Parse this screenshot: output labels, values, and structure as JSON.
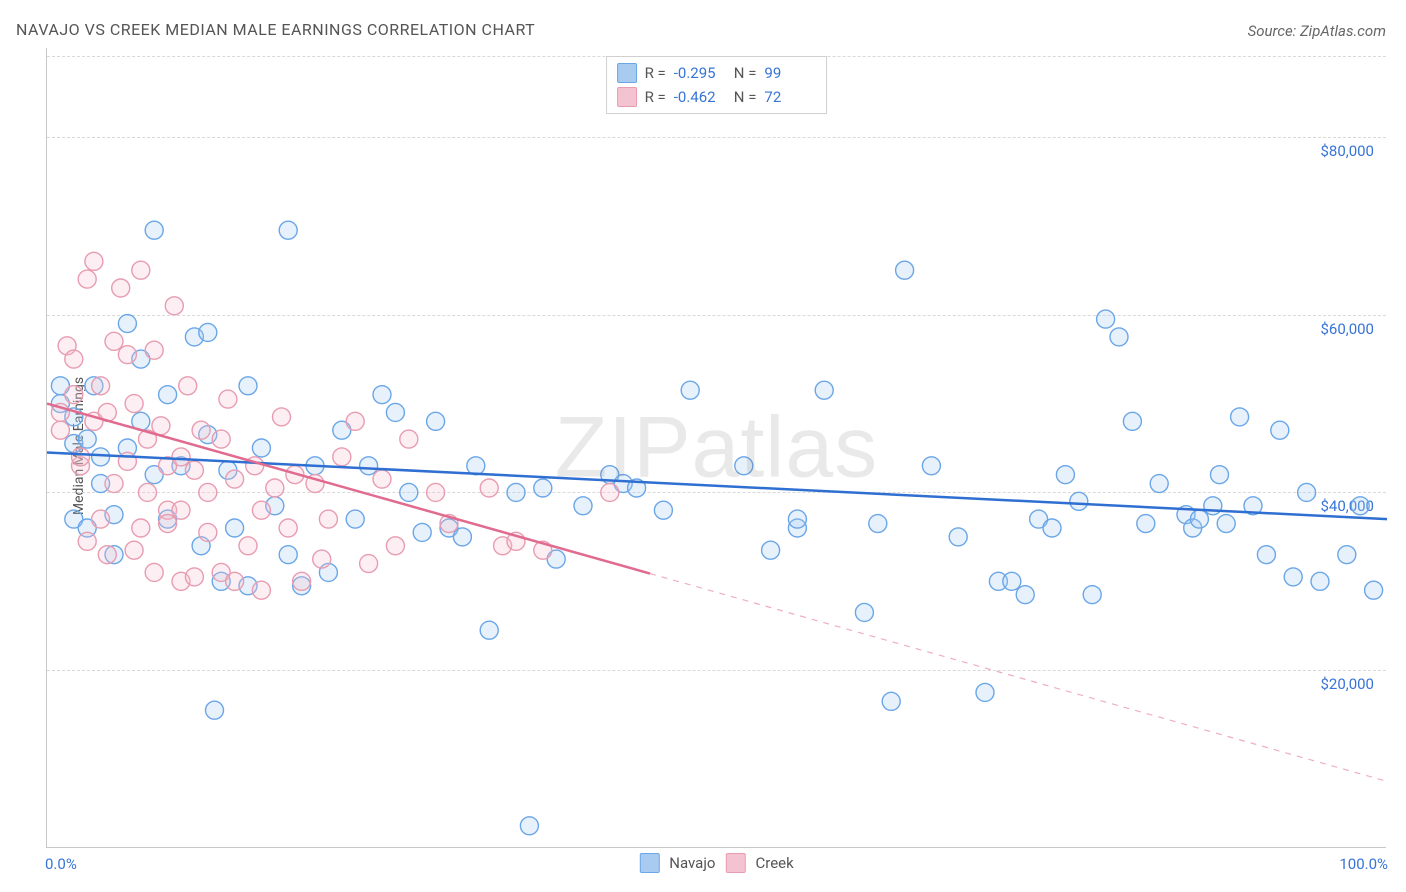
{
  "title": "NAVAJO VS CREEK MEDIAN MALE EARNINGS CORRELATION CHART",
  "source_label": "Source: ZipAtlas.com",
  "watermark": "ZIPatlas",
  "ylabel": "Median Male Earnings",
  "chart": {
    "type": "scatter",
    "background_color": "#ffffff",
    "grid_color": "#d9d9d9",
    "axis_color": "#c9c9c9",
    "tick_text_color": "#3874d6",
    "title_color": "#555555",
    "title_fontsize": 16,
    "tick_fontsize": 15,
    "xlim": [
      0,
      100
    ],
    "ylim": [
      0,
      90000
    ],
    "xtick_labels": {
      "0": "0.0%",
      "100": "100.0%"
    },
    "ytick_values": [
      20000,
      40000,
      60000,
      80000
    ],
    "ytick_labels": [
      "$20,000",
      "$40,000",
      "$60,000",
      "$80,000"
    ],
    "point_radius": 9,
    "point_fill_opacity": 0.28,
    "point_stroke_width": 1.4,
    "line_width": 2.5,
    "series": [
      {
        "name": "Navajo",
        "color_stroke": "#6aa6e8",
        "color_fill": "#a8cbef",
        "line_color": "#2f6fd1",
        "r": -0.295,
        "n": 99,
        "regression": {
          "y_at_x0": 44500,
          "y_at_x100": 37000,
          "solid_to_x": 100
        },
        "points": [
          [
            1,
            50000
          ],
          [
            1,
            52000
          ],
          [
            2,
            48500
          ],
          [
            2,
            45500
          ],
          [
            2,
            37000
          ],
          [
            3,
            36000
          ],
          [
            3,
            46000
          ],
          [
            3.5,
            52000
          ],
          [
            4,
            41000
          ],
          [
            4,
            44000
          ],
          [
            5,
            37500
          ],
          [
            5,
            33000
          ],
          [
            6,
            59000
          ],
          [
            6,
            45000
          ],
          [
            7,
            48000
          ],
          [
            7,
            55000
          ],
          [
            8,
            69500
          ],
          [
            8,
            42000
          ],
          [
            9,
            51000
          ],
          [
            9,
            37000
          ],
          [
            10,
            43000
          ],
          [
            11,
            57500
          ],
          [
            11.5,
            34000
          ],
          [
            12,
            46500
          ],
          [
            12,
            58000
          ],
          [
            12.5,
            15500
          ],
          [
            13,
            30000
          ],
          [
            13.5,
            42500
          ],
          [
            14,
            36000
          ],
          [
            15,
            52000
          ],
          [
            15,
            29500
          ],
          [
            16,
            45000
          ],
          [
            17,
            38500
          ],
          [
            18,
            69500
          ],
          [
            18,
            33000
          ],
          [
            19,
            29500
          ],
          [
            20,
            43000
          ],
          [
            21,
            31000
          ],
          [
            22,
            47000
          ],
          [
            23,
            37000
          ],
          [
            24,
            43000
          ],
          [
            25,
            51000
          ],
          [
            26,
            49000
          ],
          [
            27,
            40000
          ],
          [
            28,
            35500
          ],
          [
            29,
            48000
          ],
          [
            30,
            36000
          ],
          [
            31,
            35000
          ],
          [
            32,
            43000
          ],
          [
            33,
            24500
          ],
          [
            35,
            40000
          ],
          [
            36,
            2500
          ],
          [
            37,
            40500
          ],
          [
            38,
            32500
          ],
          [
            40,
            38500
          ],
          [
            42,
            42000
          ],
          [
            43,
            41000
          ],
          [
            44,
            40500
          ],
          [
            46,
            38000
          ],
          [
            48,
            51500
          ],
          [
            52,
            43000
          ],
          [
            54,
            33500
          ],
          [
            56,
            36000
          ],
          [
            56,
            37000
          ],
          [
            58,
            51500
          ],
          [
            61,
            26500
          ],
          [
            62,
            36500
          ],
          [
            63,
            16500
          ],
          [
            64,
            65000
          ],
          [
            66,
            43000
          ],
          [
            68,
            35000
          ],
          [
            70,
            17500
          ],
          [
            71,
            30000
          ],
          [
            72,
            30000
          ],
          [
            73,
            28500
          ],
          [
            74,
            37000
          ],
          [
            75,
            36000
          ],
          [
            76,
            42000
          ],
          [
            77,
            39000
          ],
          [
            78,
            28500
          ],
          [
            79,
            59500
          ],
          [
            80,
            57500
          ],
          [
            81,
            48000
          ],
          [
            82,
            36500
          ],
          [
            83,
            41000
          ],
          [
            85,
            37500
          ],
          [
            85.5,
            36000
          ],
          [
            86,
            37000
          ],
          [
            87,
            38500
          ],
          [
            87.5,
            42000
          ],
          [
            88,
            36500
          ],
          [
            89,
            48500
          ],
          [
            90,
            38500
          ],
          [
            91,
            33000
          ],
          [
            92,
            47000
          ],
          [
            93,
            30500
          ],
          [
            94,
            40000
          ],
          [
            95,
            30000
          ],
          [
            97,
            33000
          ],
          [
            98,
            38500
          ],
          [
            99,
            29000
          ]
        ]
      },
      {
        "name": "Creek",
        "color_stroke": "#e89cb0",
        "color_fill": "#f4c3d1",
        "line_color": "#e16b8f",
        "r": -0.462,
        "n": 72,
        "regression": {
          "y_at_x0": 50000,
          "y_at_x100": 7500,
          "solid_to_x": 45
        },
        "points": [
          [
            1,
            49000
          ],
          [
            1,
            47000
          ],
          [
            1.5,
            56500
          ],
          [
            2,
            51000
          ],
          [
            2,
            55000
          ],
          [
            2.5,
            43000
          ],
          [
            2.5,
            44000
          ],
          [
            3,
            34500
          ],
          [
            3,
            64000
          ],
          [
            3.5,
            48000
          ],
          [
            3.5,
            66000
          ],
          [
            4,
            37000
          ],
          [
            4,
            52000
          ],
          [
            4.5,
            33000
          ],
          [
            4.5,
            49000
          ],
          [
            5,
            57000
          ],
          [
            5,
            41000
          ],
          [
            5.5,
            63000
          ],
          [
            6,
            55500
          ],
          [
            6,
            43500
          ],
          [
            6.5,
            33500
          ],
          [
            6.5,
            50000
          ],
          [
            7,
            65000
          ],
          [
            7,
            36000
          ],
          [
            7.5,
            46000
          ],
          [
            7.5,
            40000
          ],
          [
            8,
            31000
          ],
          [
            8,
            56000
          ],
          [
            8.5,
            47500
          ],
          [
            9,
            38000
          ],
          [
            9,
            36500
          ],
          [
            9,
            43000
          ],
          [
            9.5,
            61000
          ],
          [
            10,
            44000
          ],
          [
            10,
            30000
          ],
          [
            10,
            38000
          ],
          [
            10.5,
            52000
          ],
          [
            11,
            42500
          ],
          [
            11,
            30500
          ],
          [
            11.5,
            47000
          ],
          [
            12,
            40000
          ],
          [
            12,
            35500
          ],
          [
            13,
            31000
          ],
          [
            13,
            46000
          ],
          [
            13.5,
            50500
          ],
          [
            14,
            30000
          ],
          [
            14,
            41500
          ],
          [
            15,
            34000
          ],
          [
            15.5,
            43000
          ],
          [
            16,
            38000
          ],
          [
            16,
            29000
          ],
          [
            17,
            40500
          ],
          [
            17.5,
            48500
          ],
          [
            18,
            36000
          ],
          [
            18.5,
            42000
          ],
          [
            19,
            30000
          ],
          [
            20,
            41000
          ],
          [
            20.5,
            32500
          ],
          [
            21,
            37000
          ],
          [
            22,
            44000
          ],
          [
            23,
            48000
          ],
          [
            24,
            32000
          ],
          [
            25,
            41500
          ],
          [
            26,
            34000
          ],
          [
            27,
            46000
          ],
          [
            29,
            40000
          ],
          [
            30,
            36500
          ],
          [
            33,
            40500
          ],
          [
            34,
            34000
          ],
          [
            35,
            34500
          ],
          [
            37,
            33500
          ],
          [
            42,
            40000
          ]
        ]
      }
    ]
  },
  "legend_top_r_label": "R =",
  "legend_top_n_label": "N =",
  "legend_bottom": [
    "Navajo",
    "Creek"
  ]
}
